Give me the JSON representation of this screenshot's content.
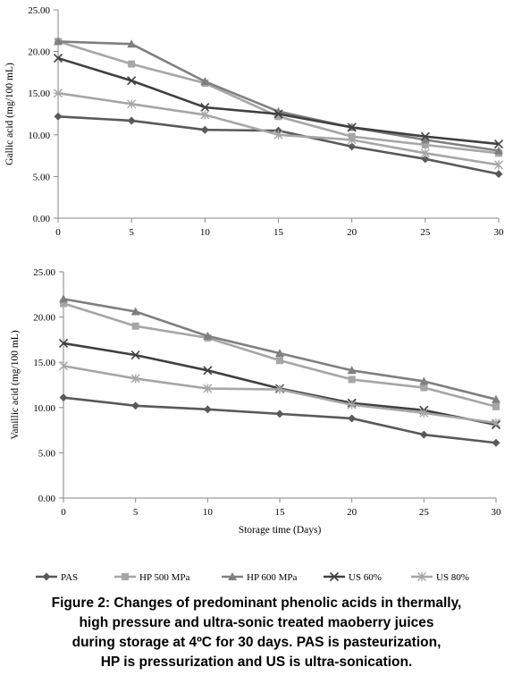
{
  "chart_data": [
    {
      "type": "line",
      "ylabel": "Gallic  acid  (mg/100  mL)",
      "xlabel": "",
      "x": [
        0,
        5,
        10,
        15,
        20,
        25,
        30
      ],
      "xlim": [
        0,
        30
      ],
      "ylim": [
        0,
        25
      ],
      "xticks": [
        "0",
        "5",
        "10",
        "15",
        "20",
        "25",
        "30"
      ],
      "yticks": [
        "0.00",
        "5.00",
        "10.00",
        "15.00",
        "20.00",
        "25.00"
      ],
      "grid": false,
      "series": [
        {
          "name": "PAS",
          "values": [
            12.2,
            11.7,
            10.6,
            10.5,
            8.6,
            7.1,
            5.3
          ]
        },
        {
          "name": "HP 500 MPa",
          "values": [
            21.2,
            18.5,
            16.2,
            12.2,
            9.8,
            8.8,
            7.8
          ]
        },
        {
          "name": "HP 600 MPa",
          "values": [
            21.2,
            20.9,
            16.4,
            12.8,
            10.9,
            9.4,
            8.1
          ]
        },
        {
          "name": "US 60%",
          "values": [
            19.2,
            16.5,
            13.3,
            12.5,
            10.9,
            9.8,
            8.9
          ]
        },
        {
          "name": "US 80%",
          "values": [
            15.0,
            13.7,
            12.4,
            10.0,
            9.4,
            7.8,
            6.4
          ]
        }
      ]
    },
    {
      "type": "line",
      "ylabel": "Vanillic  acid  (mg/100  mL)",
      "xlabel": "Storage time (Days)",
      "x": [
        0,
        5,
        10,
        15,
        20,
        25,
        30
      ],
      "xlim": [
        0,
        30
      ],
      "ylim": [
        0,
        25
      ],
      "xticks": [
        "0",
        "5",
        "10",
        "15",
        "20",
        "25",
        "30"
      ],
      "yticks": [
        "0.00",
        "5.00",
        "10.00",
        "15.00",
        "20.00",
        "25.00"
      ],
      "grid": false,
      "series": [
        {
          "name": "PAS",
          "values": [
            11.1,
            10.2,
            9.8,
            9.3,
            8.8,
            7.0,
            6.1
          ]
        },
        {
          "name": "HP 500 MPa",
          "values": [
            21.5,
            19.0,
            17.7,
            15.2,
            13.1,
            12.2,
            10.1
          ]
        },
        {
          "name": "HP 600 MPa",
          "values": [
            22.0,
            20.6,
            17.9,
            16.0,
            14.1,
            12.9,
            10.9
          ]
        },
        {
          "name": "US 60%",
          "values": [
            17.1,
            15.8,
            14.1,
            12.1,
            10.5,
            9.7,
            8.1
          ]
        },
        {
          "name": "US 80%",
          "values": [
            14.6,
            13.2,
            12.1,
            12.0,
            10.3,
            9.4,
            8.3
          ]
        }
      ]
    }
  ],
  "legend": {
    "position": "bottom",
    "items": [
      {
        "label": "PAS",
        "color": "#595959",
        "marker": "diamond"
      },
      {
        "label": "HP 500 MPa",
        "color": "#a6a6a6",
        "marker": "square"
      },
      {
        "label": "HP 600 MPa",
        "color": "#7f7f7f",
        "marker": "triangle"
      },
      {
        "label": "US 60%",
        "color": "#404040",
        "marker": "x"
      },
      {
        "label": "US 80%",
        "color": "#a6a6a6",
        "marker": "star"
      }
    ]
  },
  "caption": {
    "lines": [
      "Figure 2: Changes of predominant phenolic acids in thermally,",
      "high pressure and ultra-sonic treated maoberry juices",
      "during storage at 4ºC for 30 days. PAS is pasteurization,",
      "HP is pressurization and US is ultra-sonication."
    ]
  }
}
